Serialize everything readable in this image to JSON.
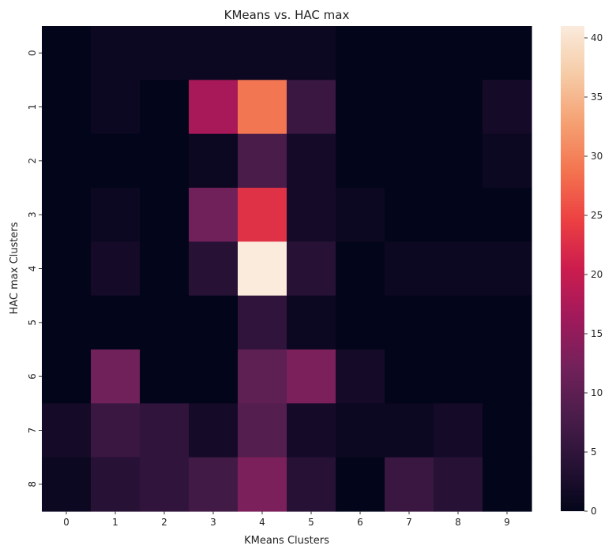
{
  "chart_data": {
    "type": "heatmap",
    "title": "KMeans  vs. HAC max",
    "xlabel": "KMeans Clusters",
    "ylabel": "HAC max Clusters",
    "x_categories": [
      "0",
      "1",
      "2",
      "3",
      "4",
      "5",
      "6",
      "7",
      "8",
      "9"
    ],
    "y_categories": [
      "0",
      "1",
      "2",
      "3",
      "4",
      "5",
      "6",
      "7",
      "8"
    ],
    "values": [
      [
        0,
        1,
        1,
        1,
        1,
        1,
        0,
        0,
        0,
        0
      ],
      [
        0,
        1,
        0,
        17,
        29,
        6,
        0,
        0,
        0,
        2
      ],
      [
        0,
        0,
        0,
        1,
        8,
        2,
        0,
        0,
        0,
        1
      ],
      [
        0,
        1,
        0,
        12,
        23,
        2,
        1,
        0,
        0,
        0
      ],
      [
        0,
        2,
        0,
        4,
        41,
        4,
        0,
        1,
        1,
        1
      ],
      [
        0,
        0,
        0,
        0,
        5,
        1,
        0,
        0,
        0,
        0
      ],
      [
        0,
        12,
        0,
        0,
        10,
        13,
        2,
        0,
        0,
        0
      ],
      [
        2,
        6,
        5,
        2,
        9,
        2,
        1,
        1,
        2,
        0
      ],
      [
        1,
        4,
        5,
        7,
        13,
        4,
        0,
        6,
        4,
        0
      ]
    ],
    "vmin": 0,
    "vmax": 41,
    "colorbar_ticks": [
      0,
      5,
      10,
      15,
      20,
      25,
      30,
      35,
      40
    ],
    "colormap": "rocket",
    "grid": false,
    "legend": "colorbar-right"
  }
}
